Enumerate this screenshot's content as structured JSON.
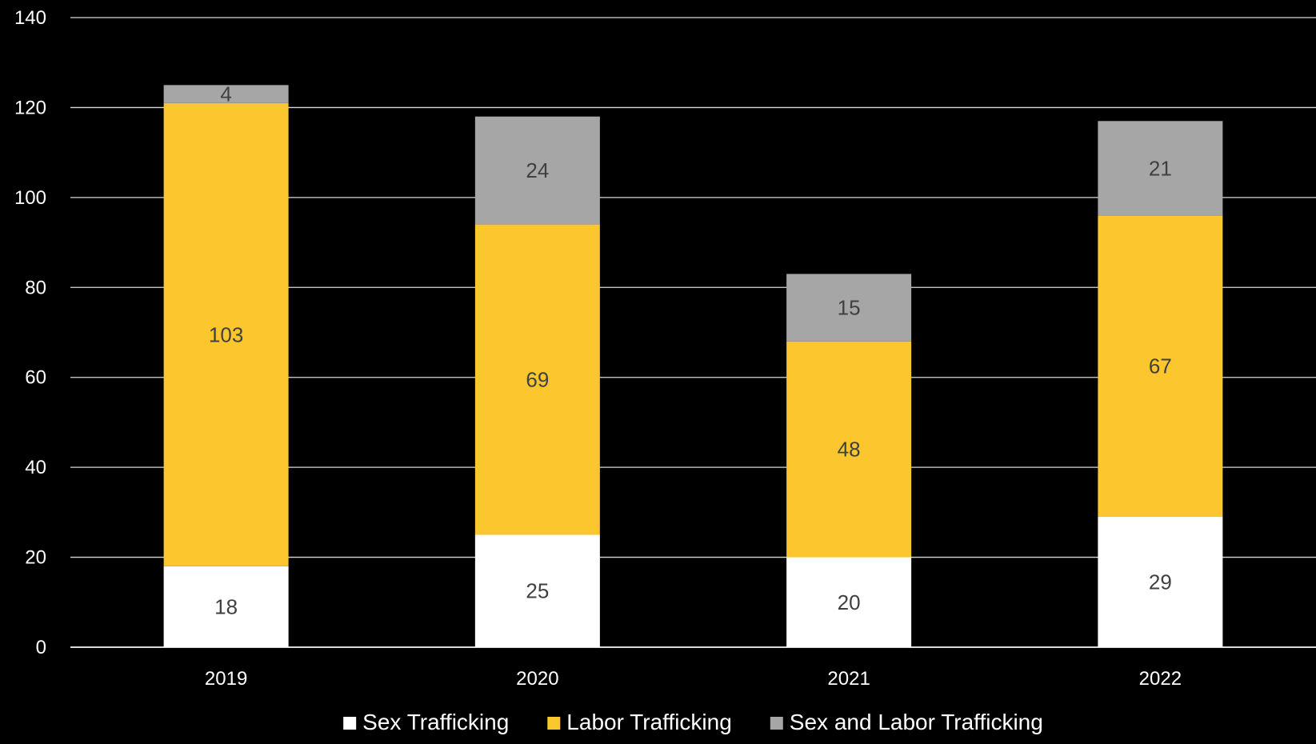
{
  "chart_data": {
    "type": "bar",
    "stacked": true,
    "title": "",
    "xlabel": "",
    "ylabel": "",
    "categories": [
      "2019",
      "2020",
      "2021",
      "2022"
    ],
    "series": [
      {
        "name": "Sex Trafficking",
        "color": "#ffffff",
        "values": [
          18,
          25,
          20,
          29
        ]
      },
      {
        "name": "Labor Trafficking",
        "color": "#fcc62e",
        "values": [
          103,
          69,
          48,
          67
        ]
      },
      {
        "name": "Sex and Labor Trafficking",
        "color": "#a6a6a6",
        "values": [
          4,
          24,
          15,
          21
        ]
      }
    ],
    "ylim": [
      0,
      140
    ],
    "yticks": [
      "0",
      "20",
      "40",
      "60",
      "80",
      "100",
      "120",
      "140"
    ],
    "grid": true,
    "legend_position": "bottom",
    "background_color": "#000000",
    "text_color": "#ffffff",
    "data_label_color": "#404040"
  }
}
